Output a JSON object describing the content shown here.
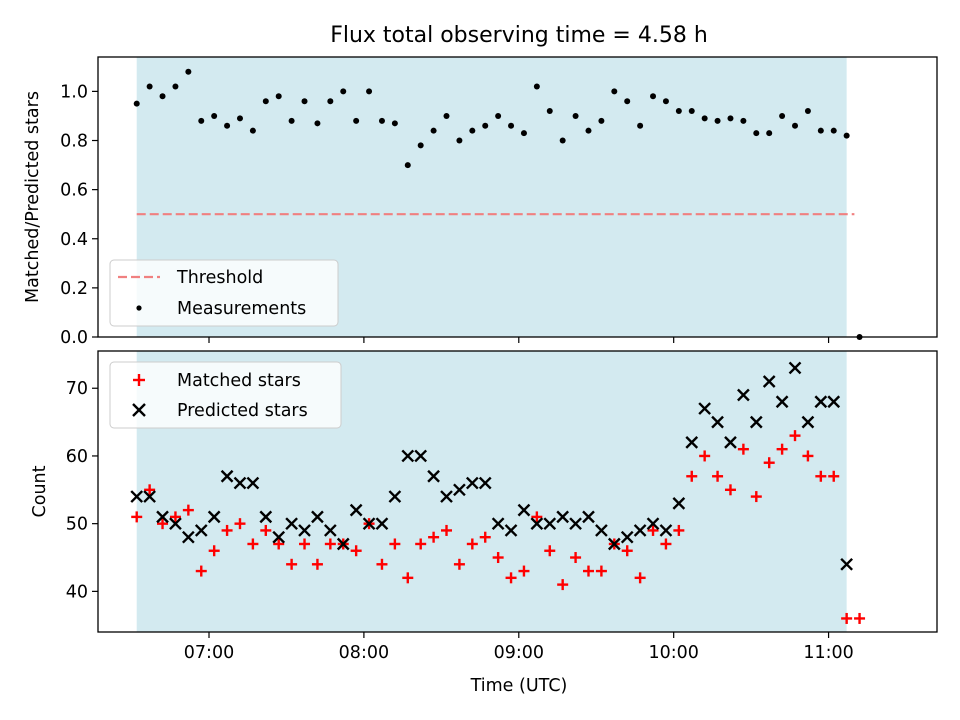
{
  "chart_data": [
    {
      "type": "scatter",
      "title": "Flux total observing time = 4.58 h",
      "ylabel": "Matched/Predicted stars",
      "xlabel": "",
      "ylim": [
        0.0,
        1.14
      ],
      "yticks": [
        "0.0",
        "0.2",
        "0.4",
        "0.6",
        "0.8",
        "1.0"
      ],
      "shaded_region": {
        "x_start": "06:32",
        "x_end": "11:07",
        "color": "#d3eaf0"
      },
      "threshold": {
        "name": "Threshold",
        "value": 0.5,
        "x_start": "06:32",
        "x_end": "11:10",
        "color": "#f08080"
      },
      "legend": {
        "placement": "lower-left",
        "entries": [
          "Threshold",
          "Measurements"
        ]
      },
      "series": [
        {
          "name": "Measurements",
          "marker": "dot",
          "color": "#000000",
          "x": [
            "06:32",
            "06:37",
            "06:42",
            "06:47",
            "06:52",
            "06:57",
            "07:02",
            "07:07",
            "07:12",
            "07:17",
            "07:22",
            "07:27",
            "07:32",
            "07:37",
            "07:42",
            "07:47",
            "07:52",
            "07:57",
            "08:02",
            "08:07",
            "08:12",
            "08:17",
            "08:22",
            "08:27",
            "08:32",
            "08:37",
            "08:42",
            "08:47",
            "08:52",
            "08:57",
            "09:02",
            "09:07",
            "09:12",
            "09:17",
            "09:22",
            "09:27",
            "09:32",
            "09:37",
            "09:42",
            "09:47",
            "09:52",
            "09:57",
            "10:02",
            "10:07",
            "10:12",
            "10:17",
            "10:22",
            "10:27",
            "10:32",
            "10:37",
            "10:42",
            "10:47",
            "10:52",
            "10:57",
            "11:02",
            "11:07",
            "11:12"
          ],
          "values": [
            0.95,
            1.02,
            0.98,
            1.02,
            1.08,
            0.88,
            0.9,
            0.86,
            0.89,
            0.84,
            0.96,
            0.98,
            0.88,
            0.96,
            0.87,
            0.96,
            1.0,
            0.88,
            1.0,
            0.88,
            0.87,
            0.7,
            0.78,
            0.84,
            0.9,
            0.8,
            0.84,
            0.86,
            0.9,
            0.86,
            0.83,
            1.02,
            0.92,
            0.8,
            0.9,
            0.84,
            0.88,
            1.0,
            0.96,
            0.86,
            0.98,
            0.96,
            0.92,
            0.92,
            0.89,
            0.88,
            0.89,
            0.88,
            0.83,
            0.83,
            0.9,
            0.86,
            0.92,
            0.84,
            0.84,
            0.82,
            0.0
          ]
        }
      ]
    },
    {
      "type": "scatter",
      "title": "",
      "xlabel": "Time (UTC)",
      "ylabel": "Count",
      "ylim": [
        34,
        75.5
      ],
      "yticks": [
        "40",
        "50",
        "60",
        "70"
      ],
      "xticks": [
        "07:00",
        "08:00",
        "09:00",
        "10:00",
        "11:00"
      ],
      "xlim": [
        "06:17",
        "11:42"
      ],
      "shaded_region": {
        "x_start": "06:32",
        "x_end": "11:07",
        "color": "#d3eaf0"
      },
      "legend": {
        "placement": "upper-left",
        "entries": [
          "Matched stars",
          "Predicted stars"
        ]
      },
      "series": [
        {
          "name": "Matched stars",
          "marker": "plus",
          "color": "#ff0000",
          "x": [
            "06:32",
            "06:37",
            "06:42",
            "06:47",
            "06:52",
            "06:57",
            "07:02",
            "07:07",
            "07:12",
            "07:17",
            "07:22",
            "07:27",
            "07:32",
            "07:37",
            "07:42",
            "07:47",
            "07:52",
            "07:57",
            "08:02",
            "08:07",
            "08:12",
            "08:17",
            "08:22",
            "08:27",
            "08:32",
            "08:37",
            "08:42",
            "08:47",
            "08:52",
            "08:57",
            "09:02",
            "09:07",
            "09:12",
            "09:17",
            "09:22",
            "09:27",
            "09:32",
            "09:37",
            "09:42",
            "09:47",
            "09:52",
            "09:57",
            "10:02",
            "10:07",
            "10:12",
            "10:17",
            "10:22",
            "10:27",
            "10:32",
            "10:37",
            "10:42",
            "10:47",
            "10:52",
            "10:57",
            "11:02",
            "11:07",
            "11:12"
          ],
          "values": [
            51,
            55,
            50,
            51,
            52,
            43,
            46,
            49,
            50,
            47,
            49,
            47,
            44,
            47,
            44,
            47,
            47,
            46,
            50,
            44,
            47,
            42,
            47,
            48,
            49,
            44,
            47,
            48,
            45,
            42,
            43,
            51,
            46,
            41,
            45,
            43,
            43,
            47,
            46,
            42,
            49,
            47,
            49,
            57,
            60,
            57,
            55,
            61,
            54,
            59,
            61,
            63,
            60,
            57,
            57,
            36,
            36
          ]
        },
        {
          "name": "Predicted stars",
          "marker": "cross",
          "color": "#000000",
          "x": [
            "06:32",
            "06:37",
            "06:42",
            "06:47",
            "06:52",
            "06:57",
            "07:02",
            "07:07",
            "07:12",
            "07:17",
            "07:22",
            "07:27",
            "07:32",
            "07:37",
            "07:42",
            "07:47",
            "07:52",
            "07:57",
            "08:02",
            "08:07",
            "08:12",
            "08:17",
            "08:22",
            "08:27",
            "08:32",
            "08:37",
            "08:42",
            "08:47",
            "08:52",
            "08:57",
            "09:02",
            "09:07",
            "09:12",
            "09:17",
            "09:22",
            "09:27",
            "09:32",
            "09:37",
            "09:42",
            "09:47",
            "09:52",
            "09:57",
            "10:02",
            "10:07",
            "10:12",
            "10:17",
            "10:22",
            "10:27",
            "10:32",
            "10:37",
            "10:42",
            "10:47",
            "10:52",
            "10:57",
            "11:02",
            "11:07"
          ],
          "values": [
            54,
            54,
            51,
            50,
            48,
            49,
            51,
            57,
            56,
            56,
            51,
            48,
            50,
            49,
            51,
            49,
            47,
            52,
            50,
            50,
            54,
            60,
            60,
            57,
            54,
            55,
            56,
            56,
            50,
            49,
            52,
            50,
            50,
            51,
            50,
            51,
            49,
            47,
            48,
            49,
            50,
            49,
            53,
            62,
            67,
            65,
            62,
            69,
            65,
            71,
            68,
            73,
            65,
            68,
            68,
            44
          ]
        }
      ]
    }
  ]
}
